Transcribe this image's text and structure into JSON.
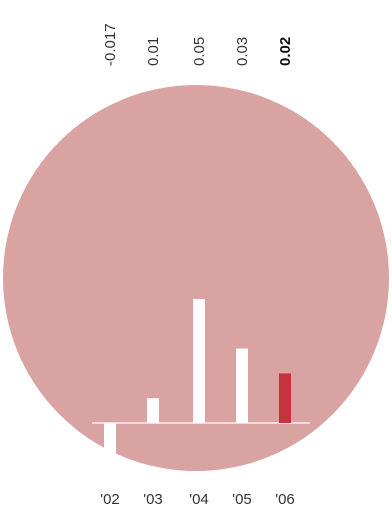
{
  "chart_data": {
    "type": "bar",
    "categories": [
      "'02",
      "'03",
      "'04",
      "'05",
      "'06"
    ],
    "values": [
      -0.017,
      0.01,
      0.05,
      0.03,
      0.02
    ],
    "value_labels": [
      "-0.017",
      "0.01",
      "0.05",
      "0.03",
      "0.02"
    ],
    "highlight_index": 4,
    "title": "",
    "xlabel": "",
    "ylabel": "",
    "grid": false,
    "colors": {
      "circle": "#d9a3a1",
      "bar": "#ffffff",
      "highlight": "#c8323c",
      "baseline": "#ffffff"
    }
  }
}
